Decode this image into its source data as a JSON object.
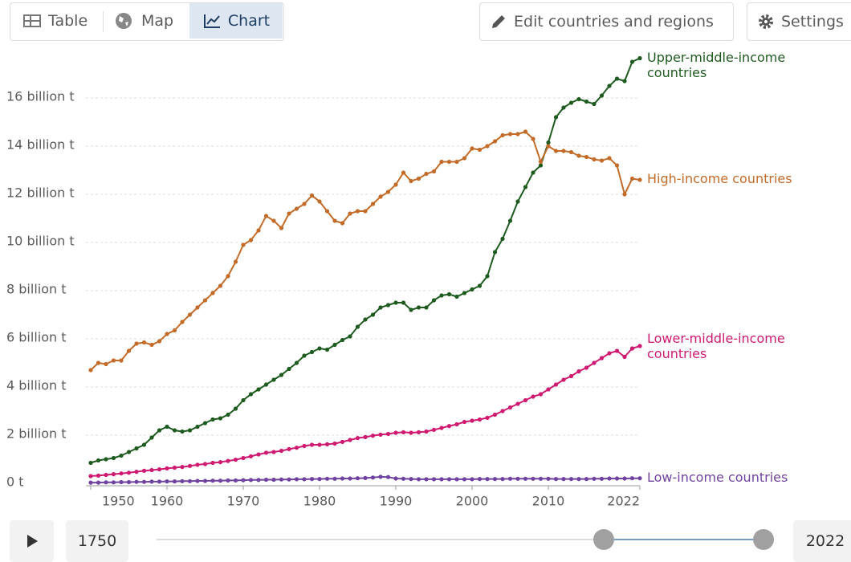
{
  "toolbar": {
    "tabs": [
      "Table",
      "Map",
      "Chart"
    ],
    "edit": "Edit countries and regions",
    "settings": "Settings"
  },
  "timeline": {
    "start": "1750",
    "end": "2022"
  },
  "chart_data": {
    "type": "line",
    "x": [
      1950,
      1951,
      1952,
      1953,
      1954,
      1955,
      1956,
      1957,
      1958,
      1959,
      1960,
      1961,
      1962,
      1963,
      1964,
      1965,
      1966,
      1967,
      1968,
      1969,
      1970,
      1971,
      1972,
      1973,
      1974,
      1975,
      1976,
      1977,
      1978,
      1979,
      1980,
      1981,
      1982,
      1983,
      1984,
      1985,
      1986,
      1987,
      1988,
      1989,
      1990,
      1991,
      1992,
      1993,
      1994,
      1995,
      1996,
      1997,
      1998,
      1999,
      2000,
      2001,
      2002,
      2003,
      2004,
      2005,
      2006,
      2007,
      2008,
      2009,
      2010,
      2011,
      2012,
      2013,
      2014,
      2015,
      2016,
      2017,
      2018,
      2019,
      2020,
      2021,
      2022
    ],
    "xlim": [
      1950,
      2022
    ],
    "xticks": [
      1950,
      1960,
      1970,
      1980,
      1990,
      2000,
      2010,
      2022
    ],
    "ylim": [
      0,
      18
    ],
    "yticks": [
      {
        "value": 0,
        "label": "0 t"
      },
      {
        "value": 2,
        "label": "2 billion t"
      },
      {
        "value": 4,
        "label": "4 billion t"
      },
      {
        "value": 6,
        "label": "6 billion t"
      },
      {
        "value": 8,
        "label": "8 billion t"
      },
      {
        "value": 10,
        "label": "10 billion t"
      },
      {
        "value": 12,
        "label": "12 billion t"
      },
      {
        "value": 14,
        "label": "14 billion t"
      },
      {
        "value": 16,
        "label": "16 billion t"
      }
    ],
    "grid": true,
    "series": [
      {
        "name": "Upper-middle-income countries",
        "color": "#1e5b1f",
        "values": [
          0.85,
          0.95,
          1.0,
          1.05,
          1.15,
          1.3,
          1.45,
          1.6,
          1.9,
          2.2,
          2.35,
          2.2,
          2.15,
          2.2,
          2.35,
          2.5,
          2.65,
          2.7,
          2.85,
          3.1,
          3.45,
          3.7,
          3.9,
          4.1,
          4.3,
          4.5,
          4.75,
          5.0,
          5.3,
          5.45,
          5.6,
          5.55,
          5.75,
          5.95,
          6.1,
          6.5,
          6.8,
          7.0,
          7.3,
          7.4,
          7.5,
          7.5,
          7.2,
          7.3,
          7.3,
          7.6,
          7.8,
          7.85,
          7.75,
          7.9,
          8.05,
          8.2,
          8.6,
          9.6,
          10.15,
          10.9,
          11.7,
          12.3,
          12.9,
          13.2,
          14.15,
          15.2,
          15.6,
          15.8,
          15.95,
          15.85,
          15.75,
          16.1,
          16.5,
          16.8,
          16.7,
          17.5,
          17.65
        ]
      },
      {
        "name": "High-income countries",
        "color": "#c36b28",
        "values": [
          4.7,
          5.0,
          4.95,
          5.1,
          5.1,
          5.5,
          5.8,
          5.85,
          5.75,
          5.9,
          6.2,
          6.35,
          6.7,
          7.0,
          7.3,
          7.6,
          7.9,
          8.2,
          8.6,
          9.2,
          9.9,
          10.1,
          10.5,
          11.1,
          10.9,
          10.6,
          11.2,
          11.4,
          11.6,
          11.95,
          11.7,
          11.3,
          10.9,
          10.8,
          11.2,
          11.3,
          11.3,
          11.6,
          11.9,
          12.1,
          12.4,
          12.9,
          12.55,
          12.65,
          12.85,
          12.95,
          13.35,
          13.35,
          13.35,
          13.5,
          13.9,
          13.85,
          14.0,
          14.2,
          14.45,
          14.5,
          14.5,
          14.6,
          14.3,
          13.35,
          14.0,
          13.8,
          13.8,
          13.75,
          13.6,
          13.55,
          13.45,
          13.4,
          13.5,
          13.2,
          12.0,
          12.65,
          12.6
        ]
      },
      {
        "name": "Lower-middle-income countries",
        "color": "#cf1a72",
        "values": [
          0.3,
          0.32,
          0.35,
          0.38,
          0.41,
          0.44,
          0.48,
          0.52,
          0.55,
          0.58,
          0.62,
          0.65,
          0.68,
          0.72,
          0.77,
          0.8,
          0.85,
          0.88,
          0.93,
          0.98,
          1.05,
          1.12,
          1.2,
          1.27,
          1.3,
          1.35,
          1.42,
          1.48,
          1.55,
          1.6,
          1.6,
          1.62,
          1.65,
          1.72,
          1.8,
          1.88,
          1.92,
          1.98,
          2.02,
          2.05,
          2.1,
          2.12,
          2.1,
          2.12,
          2.15,
          2.22,
          2.3,
          2.38,
          2.45,
          2.55,
          2.6,
          2.65,
          2.72,
          2.85,
          3.0,
          3.15,
          3.3,
          3.45,
          3.6,
          3.7,
          3.9,
          4.1,
          4.3,
          4.45,
          4.65,
          4.8,
          5.0,
          5.2,
          5.4,
          5.5,
          5.25,
          5.6,
          5.7
        ]
      },
      {
        "name": "Low-income countries",
        "color": "#7043a0",
        "values": [
          0.03,
          0.03,
          0.04,
          0.04,
          0.05,
          0.05,
          0.06,
          0.06,
          0.07,
          0.07,
          0.08,
          0.08,
          0.09,
          0.09,
          0.1,
          0.1,
          0.11,
          0.11,
          0.12,
          0.12,
          0.13,
          0.14,
          0.14,
          0.15,
          0.15,
          0.16,
          0.16,
          0.17,
          0.17,
          0.18,
          0.18,
          0.19,
          0.19,
          0.2,
          0.2,
          0.21,
          0.22,
          0.24,
          0.27,
          0.26,
          0.2,
          0.19,
          0.18,
          0.17,
          0.17,
          0.17,
          0.17,
          0.17,
          0.17,
          0.17,
          0.17,
          0.18,
          0.18,
          0.18,
          0.18,
          0.19,
          0.19,
          0.19,
          0.19,
          0.19,
          0.19,
          0.18,
          0.18,
          0.18,
          0.18,
          0.18,
          0.19,
          0.19,
          0.2,
          0.2,
          0.2,
          0.21,
          0.21
        ]
      }
    ]
  }
}
